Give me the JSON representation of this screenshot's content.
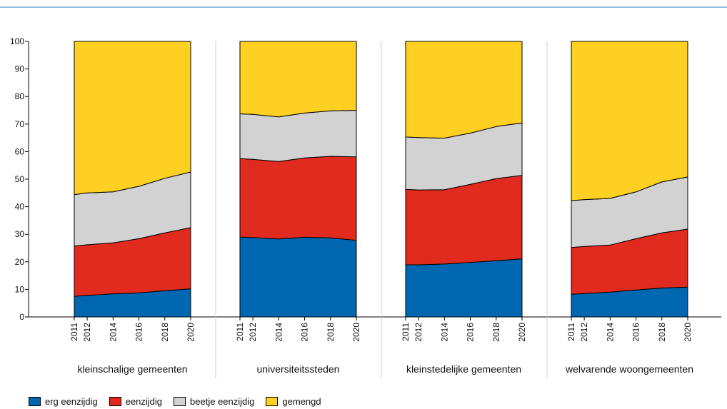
{
  "chart_data": {
    "type": "area",
    "stacked": true,
    "ylim": [
      0,
      100
    ],
    "yticks": [
      0,
      10,
      20,
      30,
      40,
      50,
      60,
      70,
      80,
      90,
      100
    ],
    "x": [
      "2011",
      "2012",
      "2014",
      "2016",
      "2018",
      "2020"
    ],
    "colors": {
      "erg eenzijdig": "#0067b0",
      "eenzijdig": "#e12b1e",
      "beetje eenzijdig": "#d2d2d2",
      "gemengd": "#fdd022"
    },
    "panels": [
      {
        "name": "kleinschalige gemeenten",
        "series": [
          {
            "name": "erg eenzijdig",
            "values": [
              7.5,
              7.8,
              8.4,
              8.7,
              9.5,
              10.2
            ]
          },
          {
            "name": "eenzijdig",
            "values": [
              18.2,
              18.4,
              18.5,
              19.7,
              21.0,
              22.2
            ]
          },
          {
            "name": "beetje eenzijdig",
            "values": [
              18.7,
              18.8,
              18.5,
              19.0,
              19.8,
              20.2
            ]
          },
          {
            "name": "gemengd",
            "values": [
              55.6,
              55.0,
              54.6,
              52.6,
              49.7,
              47.4
            ]
          }
        ]
      },
      {
        "name": "universiteitssteden",
        "series": [
          {
            "name": "erg eenzijdig",
            "values": [
              29.0,
              28.8,
              28.3,
              28.9,
              28.7,
              27.8
            ]
          },
          {
            "name": "eenzijdig",
            "values": [
              28.5,
              28.4,
              28.1,
              28.8,
              29.6,
              30.3
            ]
          },
          {
            "name": "beetje eenzijdig",
            "values": [
              16.2,
              16.3,
              16.2,
              16.3,
              16.5,
              16.9
            ]
          },
          {
            "name": "gemengd",
            "values": [
              26.3,
              26.5,
              27.4,
              26.0,
              25.2,
              25.0
            ]
          }
        ]
      },
      {
        "name": "kleinstedelijke gemeenten",
        "series": [
          {
            "name": "erg eenzijdig",
            "values": [
              18.9,
              18.9,
              19.2,
              19.8,
              20.4,
              21.1
            ]
          },
          {
            "name": "eenzijdig",
            "values": [
              27.4,
              27.2,
              27.0,
              28.3,
              29.8,
              30.3
            ]
          },
          {
            "name": "beetje eenzijdig",
            "values": [
              19.0,
              19.0,
              18.7,
              18.6,
              18.9,
              19.0
            ]
          },
          {
            "name": "gemengd",
            "values": [
              34.7,
              34.9,
              35.1,
              33.3,
              30.9,
              29.6
            ]
          }
        ]
      },
      {
        "name": "welvarende woongemeenten",
        "series": [
          {
            "name": "erg eenzijdig",
            "values": [
              8.2,
              8.5,
              9.0,
              9.8,
              10.5,
              10.8
            ]
          },
          {
            "name": "eenzijdig",
            "values": [
              17.0,
              17.1,
              17.1,
              18.6,
              20.0,
              21.1
            ]
          },
          {
            "name": "beetje eenzijdig",
            "values": [
              17.0,
              17.0,
              16.9,
              17.0,
              18.5,
              18.9
            ]
          },
          {
            "name": "gemengd",
            "values": [
              57.8,
              57.4,
              57.0,
              54.6,
              51.0,
              49.2
            ]
          }
        ]
      }
    ],
    "legend": [
      "erg eenzijdig",
      "eenzijdig",
      "beetje eenzijdig",
      "gemengd"
    ],
    "legend_position": "bottom-left",
    "grid": false
  }
}
